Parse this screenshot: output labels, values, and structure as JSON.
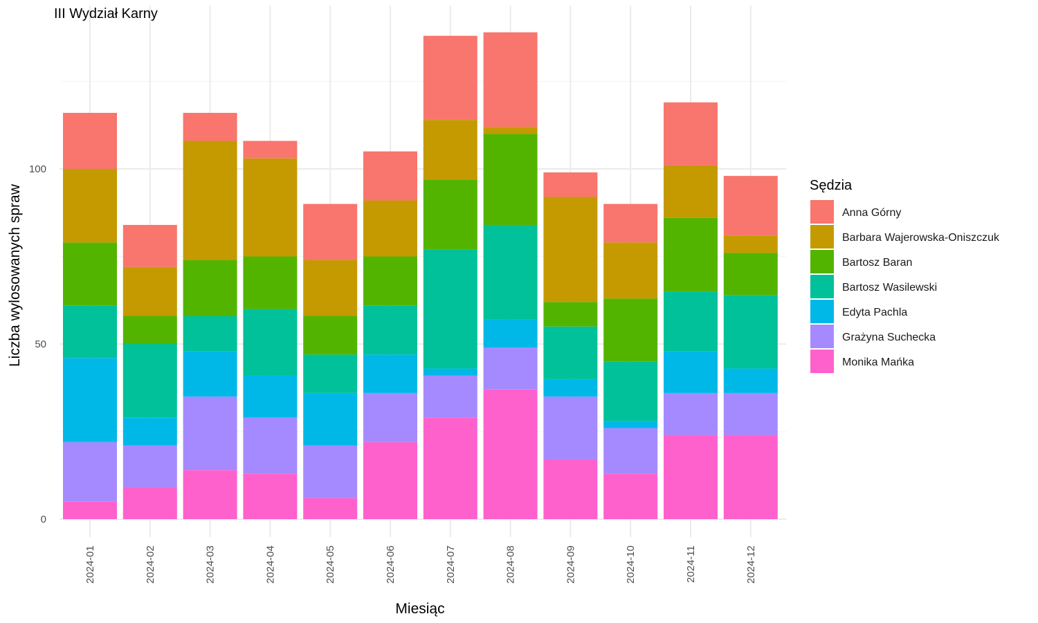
{
  "chart_data": {
    "type": "bar",
    "stacked": true,
    "title": "III Wydział Karny",
    "xlabel": "Miesiąc",
    "ylabel": "Liczba wylosowanych spraw",
    "ylim": [
      0,
      140
    ],
    "yticks": [
      0,
      50,
      100
    ],
    "grid": true,
    "legend_title": "Sędzia",
    "legend_position": "right",
    "categories": [
      "2024-01",
      "2024-02",
      "2024-03",
      "2024-04",
      "2024-05",
      "2024-06",
      "2024-07",
      "2024-08",
      "2024-09",
      "2024-10",
      "2024-11",
      "2024-12"
    ],
    "series": [
      {
        "name": "Monika Mańka",
        "color": "#FF61CC",
        "values": [
          5,
          9,
          14,
          13,
          6,
          22,
          29,
          37,
          17,
          13,
          24,
          24
        ]
      },
      {
        "name": "Grażyna Suchecka",
        "color": "#A58AFF",
        "values": [
          17,
          12,
          21,
          16,
          15,
          14,
          12,
          12,
          18,
          13,
          12,
          12
        ]
      },
      {
        "name": "Edyta Pachla",
        "color": "#00B8E7",
        "values": [
          24,
          8,
          13,
          12,
          15,
          11,
          2,
          8,
          5,
          2,
          12,
          7
        ]
      },
      {
        "name": "Bartosz Wasilewski",
        "color": "#00C19A",
        "values": [
          15,
          21,
          10,
          19,
          11,
          14,
          34,
          27,
          15,
          17,
          17,
          21
        ]
      },
      {
        "name": "Bartosz Baran",
        "color": "#53B400",
        "values": [
          18,
          8,
          16,
          15,
          11,
          14,
          20,
          26,
          7,
          18,
          21,
          12
        ]
      },
      {
        "name": "Barbara Wajerowska-Oniszczuk",
        "color": "#C49A00",
        "values": [
          21,
          14,
          34,
          28,
          16,
          16,
          17,
          2,
          30,
          16,
          15,
          5
        ]
      },
      {
        "name": "Anna Górny",
        "color": "#F8766D",
        "values": [
          16,
          12,
          8,
          5,
          16,
          14,
          24,
          27,
          7,
          11,
          18,
          17
        ]
      }
    ],
    "legend_order": [
      "Anna Górny",
      "Barbara Wajerowska-Oniszczuk",
      "Bartosz Baran",
      "Bartosz Wasilewski",
      "Edyta Pachla",
      "Grażyna Suchecka",
      "Monika Mańka"
    ]
  }
}
